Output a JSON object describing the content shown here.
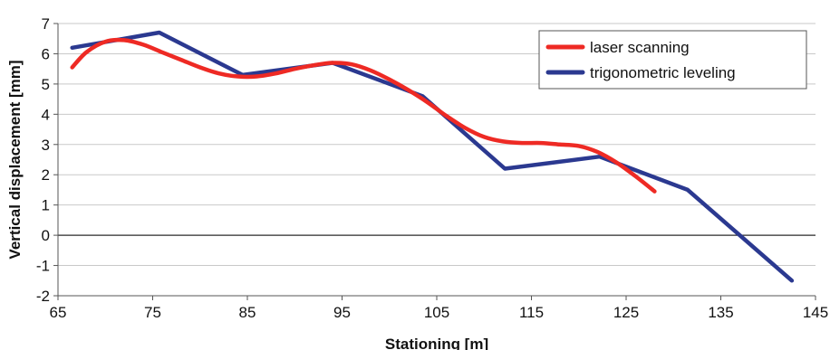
{
  "chart_data": {
    "type": "line",
    "title": "",
    "xlabel": "Stationing [m]",
    "ylabel": "Vertical displacement [mm]",
    "xlim": [
      65,
      145
    ],
    "ylim": [
      -2,
      7
    ],
    "xticks": [
      "65",
      "75",
      "85",
      "95",
      "105",
      "115",
      "125",
      "135",
      "145"
    ],
    "yticks": [
      "-2",
      "-1",
      "0",
      "1",
      "2",
      "3",
      "4",
      "5",
      "6",
      "7"
    ],
    "grid": "horizontal",
    "zero_line": true,
    "legend": {
      "placement": "top-right"
    },
    "series": [
      {
        "name": "laser scanning",
        "color": "#ee2a24",
        "smooth": true,
        "points": [
          [
            66.5,
            5.55
          ],
          [
            68,
            6.05
          ],
          [
            70,
            6.4
          ],
          [
            72,
            6.45
          ],
          [
            74,
            6.3
          ],
          [
            76,
            6.05
          ],
          [
            78,
            5.8
          ],
          [
            80,
            5.55
          ],
          [
            82,
            5.35
          ],
          [
            84,
            5.25
          ],
          [
            86,
            5.25
          ],
          [
            88,
            5.35
          ],
          [
            90,
            5.5
          ],
          [
            92,
            5.62
          ],
          [
            94,
            5.7
          ],
          [
            96,
            5.65
          ],
          [
            98,
            5.45
          ],
          [
            100,
            5.15
          ],
          [
            102,
            4.8
          ],
          [
            104,
            4.4
          ],
          [
            106,
            3.95
          ],
          [
            108,
            3.55
          ],
          [
            110,
            3.25
          ],
          [
            112,
            3.1
          ],
          [
            114,
            3.05
          ],
          [
            116,
            3.05
          ],
          [
            118,
            3.0
          ],
          [
            120,
            2.95
          ],
          [
            122,
            2.75
          ],
          [
            124,
            2.4
          ],
          [
            126,
            1.95
          ],
          [
            128,
            1.45
          ]
        ]
      },
      {
        "name": "trigonometric leveling",
        "color": "#2b3990",
        "smooth": false,
        "points": [
          [
            66.5,
            6.2
          ],
          [
            75.7,
            6.7
          ],
          [
            84.5,
            5.3
          ],
          [
            94,
            5.7
          ],
          [
            103.5,
            4.6
          ],
          [
            112.2,
            2.2
          ],
          [
            122.2,
            2.6
          ],
          [
            131.5,
            1.5
          ],
          [
            142.5,
            -1.5
          ]
        ]
      }
    ]
  }
}
